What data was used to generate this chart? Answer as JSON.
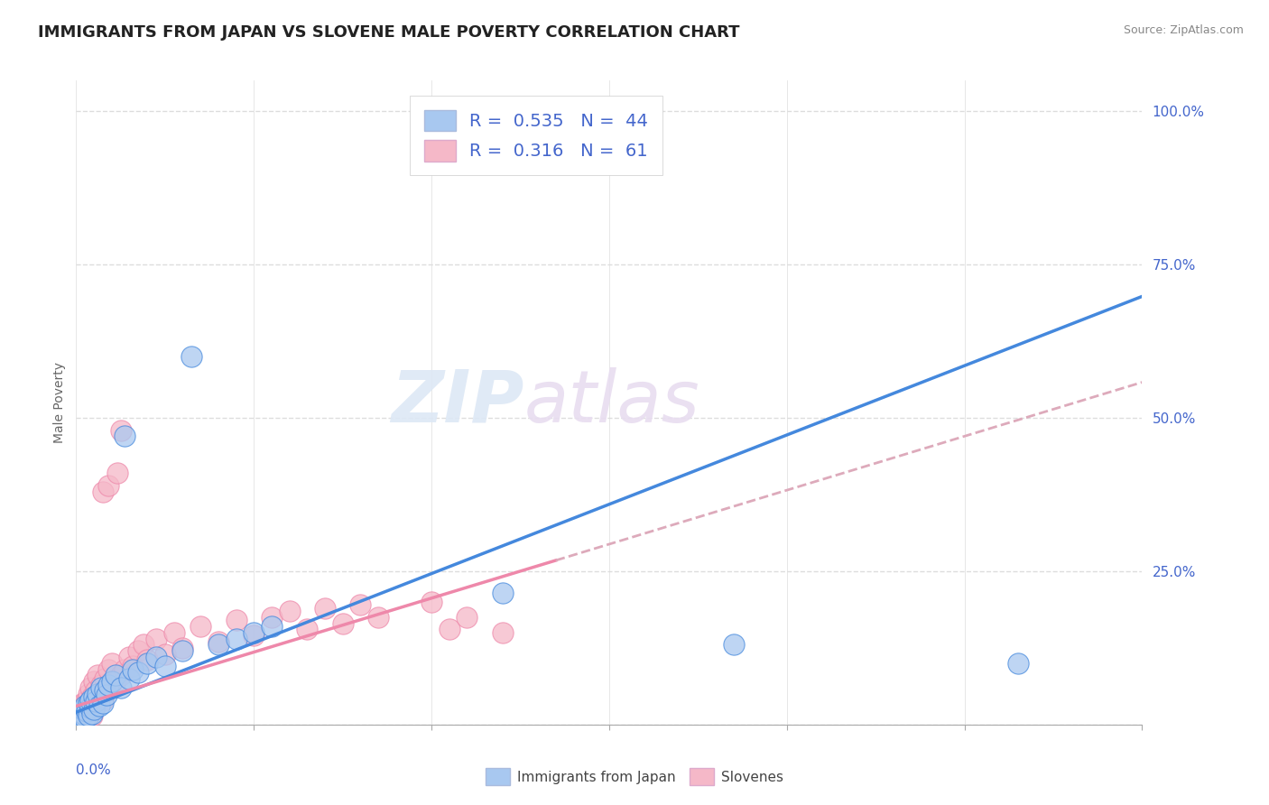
{
  "title": "IMMIGRANTS FROM JAPAN VS SLOVENE MALE POVERTY CORRELATION CHART",
  "source": "Source: ZipAtlas.com",
  "ylabel": "Male Poverty",
  "xlim": [
    0.0,
    0.6
  ],
  "ylim": [
    0.0,
    1.05
  ],
  "yticks": [
    0.0,
    0.25,
    0.5,
    0.75,
    1.0
  ],
  "ytick_labels": [
    "",
    "25.0%",
    "50.0%",
    "75.0%",
    "100.0%"
  ],
  "color_japan": "#a8c8f0",
  "color_slovene": "#f5b8c8",
  "color_japan_line": "#4488dd",
  "color_slovene_line": "#ee88aa",
  "color_slovene_dash": "#ddaabb",
  "japan_scatter": [
    [
      0.001,
      0.01
    ],
    [
      0.002,
      0.015
    ],
    [
      0.002,
      0.008
    ],
    [
      0.003,
      0.02
    ],
    [
      0.003,
      0.012
    ],
    [
      0.004,
      0.018
    ],
    [
      0.004,
      0.025
    ],
    [
      0.005,
      0.01
    ],
    [
      0.005,
      0.03
    ],
    [
      0.006,
      0.022
    ],
    [
      0.007,
      0.015
    ],
    [
      0.007,
      0.035
    ],
    [
      0.008,
      0.028
    ],
    [
      0.008,
      0.04
    ],
    [
      0.009,
      0.018
    ],
    [
      0.01,
      0.045
    ],
    [
      0.01,
      0.025
    ],
    [
      0.011,
      0.038
    ],
    [
      0.012,
      0.05
    ],
    [
      0.013,
      0.03
    ],
    [
      0.014,
      0.06
    ],
    [
      0.015,
      0.035
    ],
    [
      0.016,
      0.055
    ],
    [
      0.017,
      0.048
    ],
    [
      0.018,
      0.065
    ],
    [
      0.02,
      0.07
    ],
    [
      0.022,
      0.08
    ],
    [
      0.025,
      0.06
    ],
    [
      0.027,
      0.47
    ],
    [
      0.03,
      0.075
    ],
    [
      0.032,
      0.09
    ],
    [
      0.035,
      0.085
    ],
    [
      0.04,
      0.1
    ],
    [
      0.045,
      0.11
    ],
    [
      0.05,
      0.095
    ],
    [
      0.06,
      0.12
    ],
    [
      0.065,
      0.6
    ],
    [
      0.08,
      0.13
    ],
    [
      0.09,
      0.14
    ],
    [
      0.1,
      0.15
    ],
    [
      0.11,
      0.16
    ],
    [
      0.24,
      0.215
    ],
    [
      0.37,
      0.13
    ],
    [
      0.53,
      0.1
    ]
  ],
  "slovene_scatter": [
    [
      0.001,
      0.01
    ],
    [
      0.002,
      0.015
    ],
    [
      0.002,
      0.025
    ],
    [
      0.003,
      0.02
    ],
    [
      0.003,
      0.03
    ],
    [
      0.004,
      0.012
    ],
    [
      0.004,
      0.035
    ],
    [
      0.005,
      0.018
    ],
    [
      0.005,
      0.025
    ],
    [
      0.006,
      0.04
    ],
    [
      0.006,
      0.01
    ],
    [
      0.007,
      0.03
    ],
    [
      0.007,
      0.05
    ],
    [
      0.008,
      0.022
    ],
    [
      0.008,
      0.06
    ],
    [
      0.009,
      0.015
    ],
    [
      0.009,
      0.045
    ],
    [
      0.01,
      0.07
    ],
    [
      0.01,
      0.028
    ],
    [
      0.011,
      0.055
    ],
    [
      0.012,
      0.035
    ],
    [
      0.012,
      0.08
    ],
    [
      0.013,
      0.048
    ],
    [
      0.014,
      0.065
    ],
    [
      0.015,
      0.04
    ],
    [
      0.015,
      0.38
    ],
    [
      0.016,
      0.075
    ],
    [
      0.017,
      0.055
    ],
    [
      0.018,
      0.09
    ],
    [
      0.018,
      0.39
    ],
    [
      0.019,
      0.06
    ],
    [
      0.02,
      0.1
    ],
    [
      0.022,
      0.07
    ],
    [
      0.023,
      0.41
    ],
    [
      0.025,
      0.08
    ],
    [
      0.025,
      0.48
    ],
    [
      0.027,
      0.09
    ],
    [
      0.03,
      0.11
    ],
    [
      0.032,
      0.095
    ],
    [
      0.035,
      0.12
    ],
    [
      0.038,
      0.13
    ],
    [
      0.04,
      0.105
    ],
    [
      0.045,
      0.14
    ],
    [
      0.05,
      0.115
    ],
    [
      0.055,
      0.15
    ],
    [
      0.06,
      0.125
    ],
    [
      0.07,
      0.16
    ],
    [
      0.08,
      0.135
    ],
    [
      0.09,
      0.17
    ],
    [
      0.1,
      0.145
    ],
    [
      0.11,
      0.175
    ],
    [
      0.12,
      0.185
    ],
    [
      0.13,
      0.155
    ],
    [
      0.14,
      0.19
    ],
    [
      0.15,
      0.165
    ],
    [
      0.16,
      0.195
    ],
    [
      0.17,
      0.175
    ],
    [
      0.2,
      0.2
    ],
    [
      0.21,
      0.155
    ],
    [
      0.22,
      0.175
    ],
    [
      0.24,
      0.15
    ]
  ],
  "background_color": "#ffffff",
  "grid_color": "#dddddd",
  "tick_color": "#4466cc",
  "title_fontsize": 13,
  "axis_label_fontsize": 10,
  "legend_fontsize": 14
}
